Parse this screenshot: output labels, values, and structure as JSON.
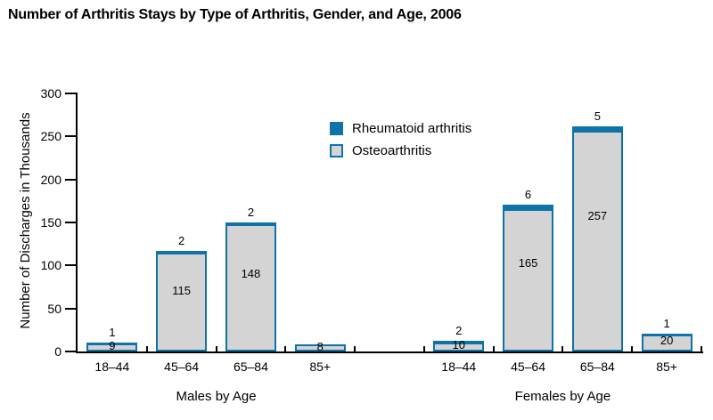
{
  "chart_data": {
    "type": "bar",
    "stacked": true,
    "title": "Number of Arthritis Stays by Type of Arthritis, Gender, and Age, 2006",
    "ylabel": "Number of Discharges in Thousands",
    "ylim": [
      0,
      300
    ],
    "yticks": [
      0,
      50,
      100,
      150,
      200,
      250,
      300
    ],
    "grid": false,
    "legend_position": "upper-center",
    "colors": {
      "rheumatoid": "#1073a8",
      "osteoarthritis_fill": "#d4d4d4",
      "axis": "#000000"
    },
    "legend": [
      {
        "label": "Rheumatoid arthritis"
      },
      {
        "label": "Osteoarthritis"
      }
    ],
    "groups": [
      {
        "label": "Males by Age",
        "categories": [
          "18–44",
          "45–64",
          "65–84",
          "85+"
        ]
      },
      {
        "label": "Females by Age",
        "categories": [
          "18–44",
          "45–64",
          "65–84",
          "85+"
        ]
      }
    ],
    "series": [
      {
        "name": "Rheumatoid arthritis",
        "values": [
          1,
          2,
          2,
          null,
          2,
          6,
          5,
          1
        ]
      },
      {
        "name": "Osteoarthritis",
        "values": [
          9,
          115,
          148,
          8,
          10,
          165,
          257,
          20
        ]
      }
    ]
  }
}
